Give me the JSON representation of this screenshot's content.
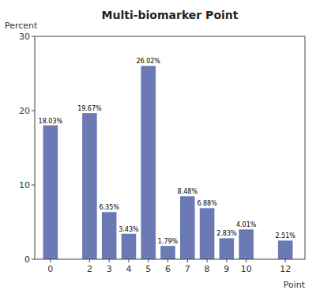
{
  "chart_data": {
    "type": "bar",
    "title": "Multi-biomarker Point",
    "x_label": "Point",
    "y_label": "Percent",
    "x": [
      0,
      2,
      3,
      4,
      5,
      6,
      7,
      8,
      9,
      10,
      12
    ],
    "values": [
      18.03,
      19.67,
      6.35,
      3.43,
      26.02,
      1.79,
      8.48,
      6.88,
      2.83,
      4.01,
      2.51
    ],
    "value_labels": [
      "18.03%",
      "19.67%",
      "6.35%",
      "3.43%",
      "26.02%",
      "1.79%",
      "8.48%",
      "6.88%",
      "2.83%",
      "4.01%",
      "2.51%"
    ],
    "data_labels": true,
    "color": "#6b7ab5",
    "xlim": [
      -0.8,
      13.0
    ],
    "xticks": [
      0,
      2,
      3,
      4,
      5,
      6,
      7,
      8,
      9,
      10,
      12
    ],
    "ylim": [
      0,
      30
    ],
    "yticks": [
      0,
      10,
      20,
      30
    ],
    "grid": false
  }
}
